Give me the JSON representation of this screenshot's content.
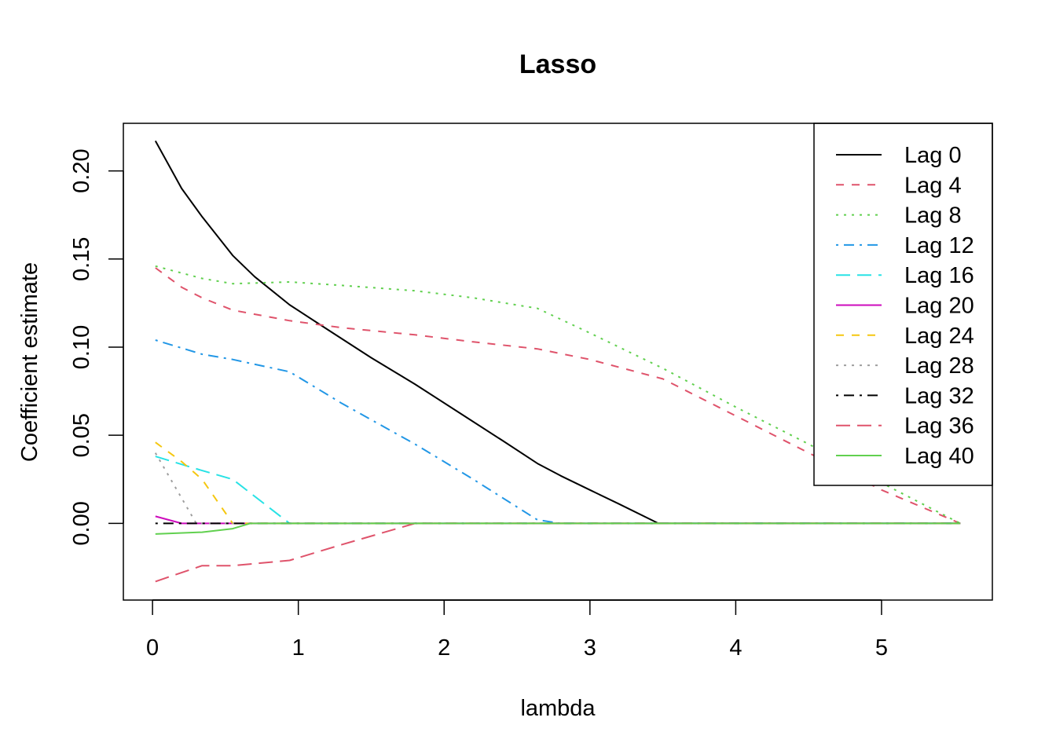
{
  "chart_data": {
    "type": "line",
    "title": "Lasso",
    "xlabel": "lambda",
    "ylabel": "Coefficient estimate",
    "xlim": [
      -0.2,
      5.76
    ],
    "ylim": [
      -0.0435,
      0.227
    ],
    "x_ticks": [
      0,
      1,
      2,
      3,
      4,
      5
    ],
    "x_tick_labels": [
      "0",
      "1",
      "2",
      "3",
      "4",
      "5"
    ],
    "y_ticks": [
      0.0,
      0.05,
      0.1,
      0.15,
      0.2
    ],
    "y_tick_labels": [
      "0.00",
      "0.05",
      "0.10",
      "0.15",
      "0.20"
    ],
    "grid": false,
    "legend_position": "top-right",
    "series": [
      {
        "name": "Lag 0",
        "color": "#000000",
        "dash": "solid",
        "x": [
          0.02,
          0.1,
          0.2,
          0.34,
          0.55,
          0.7,
          0.94,
          1.2,
          1.5,
          1.8,
          2.1,
          2.4,
          2.64,
          2.8,
          3.0,
          3.2,
          3.47,
          3.7,
          4.0,
          4.5,
          5.0,
          5.54
        ],
        "y": [
          0.217,
          0.205,
          0.19,
          0.174,
          0.152,
          0.14,
          0.124,
          0.11,
          0.094,
          0.079,
          0.063,
          0.047,
          0.034,
          0.027,
          0.019,
          0.011,
          0.0,
          0.0,
          0.0,
          0.0,
          0.0,
          0.0
        ]
      },
      {
        "name": "Lag 4",
        "color": "#DF536B",
        "dash": "dashed",
        "x": [
          0.02,
          0.2,
          0.34,
          0.55,
          0.94,
          1.3,
          1.8,
          2.2,
          2.64,
          3.0,
          3.5,
          4.0,
          4.5,
          5.0,
          5.54
        ],
        "y": [
          0.145,
          0.134,
          0.128,
          0.121,
          0.115,
          0.111,
          0.107,
          0.103,
          0.099,
          0.093,
          0.082,
          0.061,
          0.04,
          0.019,
          0.0
        ]
      },
      {
        "name": "Lag 8",
        "color": "#61D04F",
        "dash": "dotted",
        "x": [
          0.02,
          0.34,
          0.55,
          0.94,
          1.3,
          1.8,
          2.2,
          2.64,
          3.0,
          3.5,
          4.0,
          4.5,
          5.0,
          5.54
        ],
        "y": [
          0.146,
          0.139,
          0.136,
          0.137,
          0.135,
          0.132,
          0.128,
          0.122,
          0.108,
          0.088,
          0.066,
          0.045,
          0.023,
          0.0
        ]
      },
      {
        "name": "Lag 12",
        "color": "#2297E6",
        "dash": "dotdash",
        "x": [
          0.02,
          0.34,
          0.55,
          0.94,
          1.3,
          1.8,
          2.2,
          2.64,
          2.8,
          3.0,
          4.0,
          5.0,
          5.54
        ],
        "y": [
          0.104,
          0.096,
          0.093,
          0.086,
          0.068,
          0.045,
          0.025,
          0.002,
          0.0,
          0.0,
          0.0,
          0.0,
          0.0
        ]
      },
      {
        "name": "Lag 16",
        "color": "#28E2E5",
        "dash": "longdash",
        "x": [
          0.02,
          0.34,
          0.55,
          0.94,
          1.5,
          2.0,
          3.0,
          4.0,
          5.0,
          5.54
        ],
        "y": [
          0.038,
          0.03,
          0.025,
          0.0,
          0.0,
          0.0,
          0.0,
          0.0,
          0.0,
          0.0
        ]
      },
      {
        "name": "Lag 20",
        "color": "#CD0BBC",
        "dash": "solid",
        "x": [
          0.02,
          0.2,
          0.34,
          0.55,
          1.0,
          2.0,
          3.0,
          4.0,
          5.0,
          5.54
        ],
        "y": [
          0.004,
          0.0,
          0.0,
          0.0,
          0.0,
          0.0,
          0.0,
          0.0,
          0.0,
          0.0
        ]
      },
      {
        "name": "Lag 24",
        "color": "#F5C710",
        "dash": "dashed",
        "x": [
          0.02,
          0.2,
          0.34,
          0.55,
          1.0,
          2.0,
          3.0,
          4.0,
          5.0,
          5.54
        ],
        "y": [
          0.046,
          0.035,
          0.025,
          0.0,
          0.0,
          0.0,
          0.0,
          0.0,
          0.0,
          0.0
        ]
      },
      {
        "name": "Lag 28",
        "color": "#9E9E9E",
        "dash": "dotted",
        "x": [
          0.02,
          0.3,
          1.0,
          2.0,
          3.0,
          4.0,
          5.0,
          5.54
        ],
        "y": [
          0.04,
          0.0,
          0.0,
          0.0,
          0.0,
          0.0,
          0.0,
          0.0
        ]
      },
      {
        "name": "Lag 32",
        "color": "#000000",
        "dash": "dotdash",
        "x": [
          0.02,
          0.55,
          1.0,
          2.0,
          3.0,
          4.0,
          5.0,
          5.54
        ],
        "y": [
          0.0,
          0.0,
          0.0,
          0.0,
          0.0,
          0.0,
          0.0,
          0.0
        ]
      },
      {
        "name": "Lag 36",
        "color": "#DF536B",
        "dash": "longdash",
        "x": [
          0.02,
          0.34,
          0.55,
          0.94,
          1.3,
          1.8,
          2.2,
          3.0,
          4.0,
          5.0,
          5.54
        ],
        "y": [
          -0.033,
          -0.024,
          -0.024,
          -0.021,
          -0.012,
          0.0,
          0.0,
          0.0,
          0.0,
          0.0,
          0.0
        ]
      },
      {
        "name": "Lag 40",
        "color": "#61D04F",
        "dash": "solid",
        "x": [
          0.02,
          0.34,
          0.55,
          0.67,
          1.0,
          2.0,
          3.0,
          4.0,
          5.0,
          5.54
        ],
        "y": [
          -0.006,
          -0.005,
          -0.003,
          0.0,
          0.0,
          0.0,
          0.0,
          0.0,
          0.0,
          0.0
        ]
      }
    ]
  }
}
